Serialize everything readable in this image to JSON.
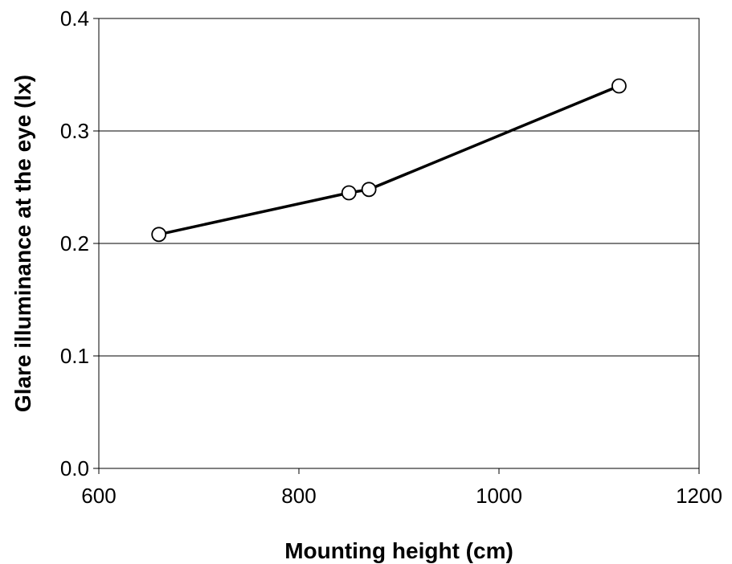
{
  "chart_data": {
    "type": "line",
    "title": "",
    "xlabel": "Mounting height (cm)",
    "ylabel": "Glare illuminance at the eye (lx)",
    "xlim": [
      600,
      1200
    ],
    "ylim": [
      0.0,
      0.4
    ],
    "xticks": [
      600,
      800,
      1000,
      1200
    ],
    "yticks": [
      0.0,
      0.1,
      0.2,
      0.3,
      0.4
    ],
    "xtick_labels": [
      "600",
      "800",
      "1000",
      "1200"
    ],
    "ytick_labels": [
      "0.0",
      "0.1",
      "0.2",
      "0.3",
      "0.4"
    ],
    "grid": "horizontal",
    "legend": "none",
    "series": [
      {
        "x": [
          660,
          850,
          870,
          1120
        ],
        "y": [
          0.208,
          0.245,
          0.248,
          0.34
        ],
        "marker": "open-circle",
        "color": "#000000"
      }
    ]
  }
}
